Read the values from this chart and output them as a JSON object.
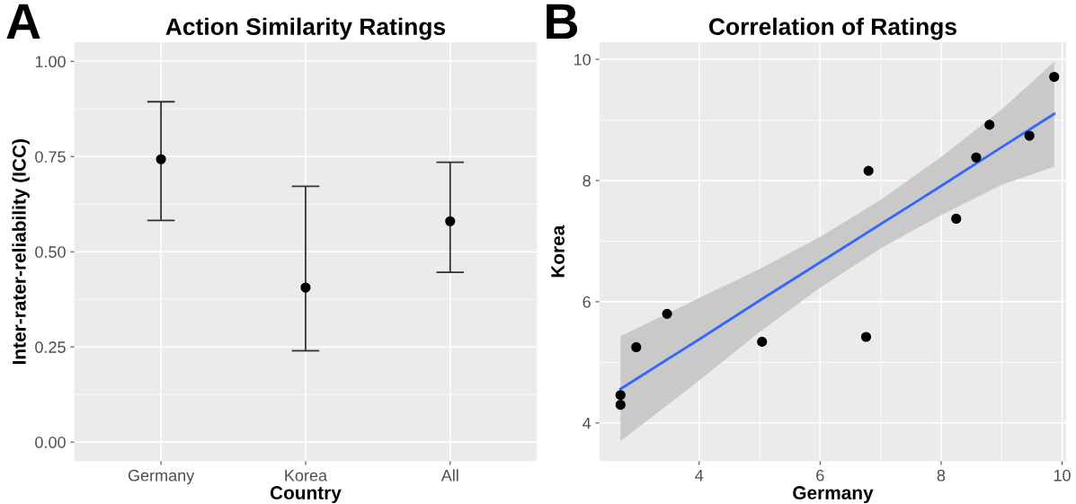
{
  "chart_data": [
    {
      "type": "scatter",
      "title": "Action Similarity Ratings",
      "xlabel": "Country",
      "ylabel": "Inter-rater-reliability (ICC)",
      "annotations": [
        "A"
      ],
      "categories": [
        "Germany",
        "Korea",
        "All"
      ],
      "series": [
        {
          "color": "#000000",
          "values": [
            0.743,
            0.406,
            0.58
          ],
          "errors": [
            [
              0.582,
              0.894
            ],
            [
              0.24,
              0.672
            ],
            [
              0.446,
              0.735
            ]
          ]
        }
      ],
      "ylim": [
        -0.05,
        1.05
      ],
      "yticks": [
        {
          "value": 0,
          "label": "0.00"
        },
        {
          "value": 0.25,
          "label": "0.25"
        },
        {
          "value": 0.5,
          "label": "0.50"
        },
        {
          "value": 0.75,
          "label": "0.75"
        },
        {
          "value": 1,
          "label": "1.00"
        }
      ],
      "grid": true,
      "marker": "circle"
    },
    {
      "type": "scatter",
      "title": "Correlation of Ratings",
      "xlabel": "Germany",
      "ylabel": "Korea",
      "annotations": [
        "B"
      ],
      "series": [
        {
          "type": "scatter",
          "marker": "circle",
          "color": "#000000",
          "x": [
            2.7,
            2.7,
            2.96,
            3.47,
            5.04,
            6.76,
            6.8,
            8.25,
            8.58,
            8.8,
            9.46,
            9.87
          ],
          "values": [
            4.46,
            4.3,
            5.25,
            5.8,
            5.34,
            5.42,
            8.16,
            7.37,
            8.38,
            8.92,
            8.74,
            9.71
          ]
        },
        {
          "type": "line",
          "color": "#3366ff",
          "x": [
            2.7,
            4,
            5,
            6,
            7,
            8,
            9,
            9.87
          ],
          "values": [
            4.56,
            5.38,
            6.02,
            6.65,
            7.28,
            7.91,
            8.55,
            9.1
          ],
          "lower": [
            3.7,
            4.7,
            5.5,
            6.23,
            6.88,
            7.43,
            7.93,
            8.23
          ],
          "upper": [
            5.43,
            6.06,
            6.54,
            7.07,
            7.68,
            8.39,
            9.17,
            9.96
          ]
        }
      ],
      "xlim": [
        2.35,
        10.07
      ],
      "xticks": [
        4,
        6,
        8,
        10
      ],
      "ylim": [
        3.37,
        10.28
      ],
      "yticks": [
        4,
        6,
        8,
        10
      ],
      "grid": true
    }
  ]
}
